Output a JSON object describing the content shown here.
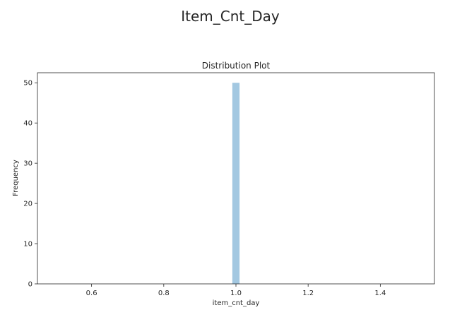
{
  "figure": {
    "suptitle": "Item_Cnt_Day"
  },
  "chart_data": {
    "type": "bar",
    "title": "Distribution Plot",
    "xlabel": "item_cnt_day",
    "ylabel": "Frequency",
    "xlim": [
      0.45,
      1.55
    ],
    "ylim": [
      0,
      52.5
    ],
    "x_ticks": [
      "0.6",
      "0.8",
      "1.0",
      "1.2",
      "1.4"
    ],
    "y_ticks": [
      "0",
      "10",
      "20",
      "30",
      "40",
      "50"
    ],
    "bins": [
      {
        "x_start": 0.99,
        "x_end": 1.01,
        "value": 50
      }
    ],
    "bar_color": "#a3c8e1",
    "grid": false,
    "legend": "none"
  }
}
